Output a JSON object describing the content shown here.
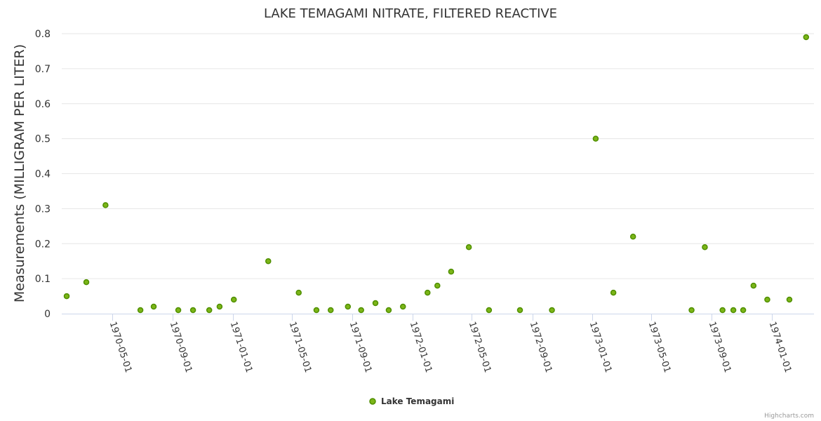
{
  "chart_data": {
    "type": "scatter",
    "title": "LAKE TEMAGAMI NITRATE, FILTERED REACTIVE",
    "xlabel": "",
    "ylabel": "Measurements (MILLIGRAM PER LITER)",
    "ylim": [
      0,
      0.8
    ],
    "xlim": [
      "1970-01-18",
      "1974-03-28"
    ],
    "yticks": [
      "0",
      "0.1",
      "0.2",
      "0.3",
      "0.4",
      "0.5",
      "0.6",
      "0.7",
      "0.8"
    ],
    "xticks": [
      "1970-05-01",
      "1970-09-01",
      "1971-01-01",
      "1971-05-01",
      "1971-09-01",
      "1972-01-01",
      "1972-05-01",
      "1972-09-01",
      "1973-01-01",
      "1973-05-01",
      "1973-09-01",
      "1974-01-01"
    ],
    "grid": true,
    "legend_position": "bottom-center",
    "series": [
      {
        "name": "Lake Temagami",
        "color": "#7cb518",
        "stroke": "#4f8f00",
        "points": [
          [
            "1970-01-28",
            0.05
          ],
          [
            "1970-03-09",
            0.09
          ],
          [
            "1970-04-17",
            0.31
          ],
          [
            "1970-06-27",
            0.01
          ],
          [
            "1970-07-24",
            0.02
          ],
          [
            "1970-09-12",
            0.01
          ],
          [
            "1970-10-12",
            0.01
          ],
          [
            "1970-11-14",
            0.01
          ],
          [
            "1970-12-05",
            0.02
          ],
          [
            "1971-01-03",
            0.04
          ],
          [
            "1971-03-14",
            0.15
          ],
          [
            "1971-05-15",
            0.06
          ],
          [
            "1971-06-20",
            0.01
          ],
          [
            "1971-07-19",
            0.01
          ],
          [
            "1971-08-23",
            0.02
          ],
          [
            "1971-09-19",
            0.01
          ],
          [
            "1971-10-18",
            0.03
          ],
          [
            "1971-11-14",
            0.01
          ],
          [
            "1971-12-13",
            0.02
          ],
          [
            "1972-02-01",
            0.06
          ],
          [
            "1972-02-21",
            0.08
          ],
          [
            "1972-03-20",
            0.12
          ],
          [
            "1972-04-25",
            0.19
          ],
          [
            "1972-06-05",
            0.01
          ],
          [
            "1972-08-07",
            0.01
          ],
          [
            "1972-10-11",
            0.01
          ],
          [
            "1973-01-08",
            0.5
          ],
          [
            "1973-02-13",
            0.06
          ],
          [
            "1973-03-25",
            0.22
          ],
          [
            "1973-07-22",
            0.01
          ],
          [
            "1973-08-18",
            0.19
          ],
          [
            "1973-09-23",
            0.01
          ],
          [
            "1973-10-15",
            0.01
          ],
          [
            "1973-11-04",
            0.01
          ],
          [
            "1973-11-25",
            0.08
          ],
          [
            "1973-12-23",
            0.04
          ],
          [
            "1974-02-06",
            0.04
          ],
          [
            "1974-03-12",
            0.79
          ]
        ]
      }
    ],
    "credits": "Highcharts.com"
  }
}
